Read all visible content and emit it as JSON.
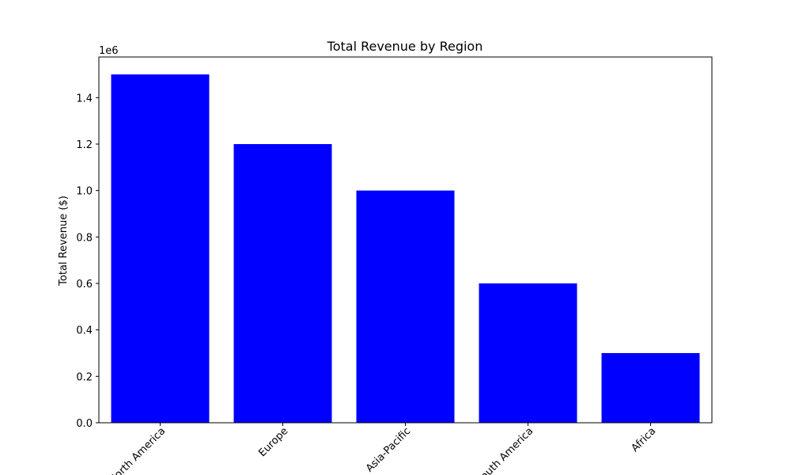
{
  "chart_data": {
    "type": "bar",
    "title": "Total Revenue by Region",
    "xlabel": "",
    "ylabel": "Total Revenue ($)",
    "y_offset_label": "1e6",
    "categories": [
      "North America",
      "Europe",
      "Asia-Pacific",
      "South America",
      "Africa"
    ],
    "values": [
      1500000,
      1200000,
      1000000,
      600000,
      300000
    ],
    "ylim": [
      0,
      1575000
    ],
    "y_ticks": [
      0,
      200000,
      400000,
      600000,
      800000,
      1000000,
      1200000,
      1400000
    ],
    "y_tick_labels": [
      "0.0",
      "0.2",
      "0.4",
      "0.6",
      "0.8",
      "1.0",
      "1.2",
      "1.4"
    ],
    "bar_color": "#0000ff",
    "x_tick_rotation_deg": 45,
    "grid": false,
    "legend": "none"
  }
}
